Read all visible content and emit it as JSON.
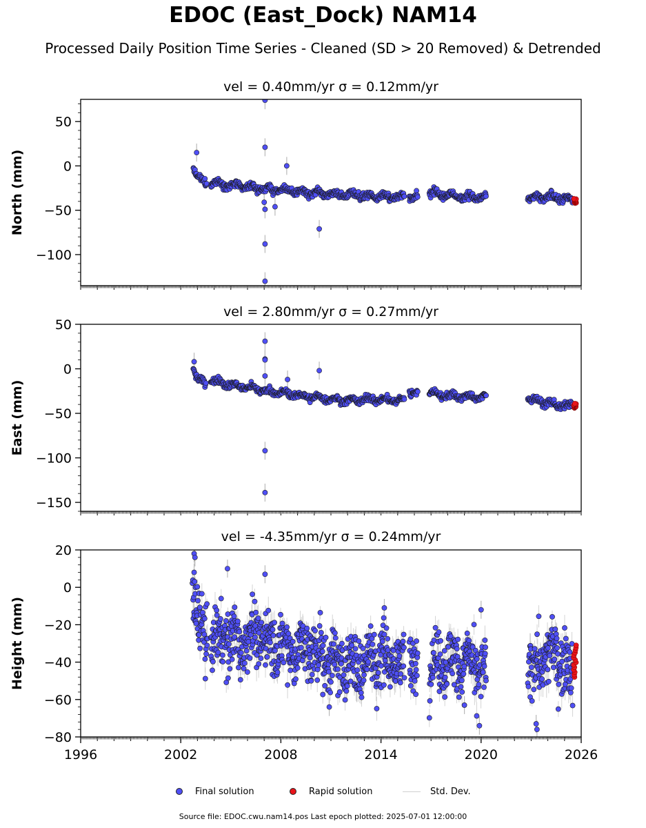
{
  "figure": {
    "title": "EDOC (East_Dock) NAM14",
    "subtitle": "Processed Daily Position Time Series - Cleaned (SD > 20 Removed) & Detrended",
    "footer": "Source file: EDOC.cwu.nam14.pos  Last epoch plotted: 2025-07-01 12:00:00"
  },
  "legend": {
    "final_label": "Final solution",
    "rapid_label": "Rapid solution",
    "sd_label": "Std. Dev.",
    "placement": "bottom-center"
  },
  "colors": {
    "final": "#4f4ff5",
    "rapid": "#e8141a",
    "sd": "#b8b8b8",
    "edge": "#1a1a1a"
  },
  "chart_data": [
    {
      "type": "scatter",
      "component": "north",
      "title": "vel = 0.40mm/yr   σ = 0.12mm/yr",
      "ylabel": "North (mm)",
      "xlim": [
        1996,
        2026
      ],
      "ylim": [
        -135,
        75
      ],
      "yticks": [
        -100,
        -50,
        0,
        50
      ],
      "ytick_labels": [
        "−100",
        "−50",
        "0",
        "50"
      ],
      "series": [
        {
          "name": "Final solution",
          "segments": [
            {
              "x": [
                2002.75,
                2002.9,
                2003.05,
                2003.2,
                2003.4,
                2003.55
              ],
              "y": [
                0,
                -9,
                -14,
                -16,
                -19,
                -20
              ]
            },
            {
              "x": [
                2003.8,
                2005.0,
                2006.0,
                2006.7,
                2007.5,
                2008.5,
                2009.5,
                2010.5,
                2011.5,
                2012.5,
                2013.5,
                2014.5,
                2015.4
              ],
              "y": [
                -18,
                -22,
                -24,
                -25,
                -27,
                -28,
                -30,
                -31,
                -32,
                -33,
                -34,
                -35,
                -35
              ]
            },
            {
              "x": [
                2015.7,
                2016.2
              ],
              "y": [
                -34,
                -34
              ]
            },
            {
              "x": [
                2016.9,
                2017.5,
                2018.5,
                2019.5,
                2020.3
              ],
              "y": [
                -31,
                -32,
                -34,
                -35,
                -36
              ]
            },
            {
              "x": [
                2022.8,
                2023.5,
                2024.2,
                2025.0,
                2025.5
              ],
              "y": [
                -37,
                -36,
                -35,
                -37,
                -39
              ]
            }
          ],
          "outliers": [
            {
              "x": 2002.95,
              "y": 15
            },
            {
              "x": 2007.05,
              "y": 74
            },
            {
              "x": 2007.05,
              "y": 21
            },
            {
              "x": 2007.05,
              "y": -49
            },
            {
              "x": 2007.05,
              "y": -88
            },
            {
              "x": 2007.05,
              "y": -130
            },
            {
              "x": 2007.0,
              "y": -41
            },
            {
              "x": 2007.65,
              "y": -46
            },
            {
              "x": 2008.35,
              "y": 0
            },
            {
              "x": 2010.3,
              "y": -71
            }
          ]
        },
        {
          "name": "Rapid solution",
          "x_range": [
            2025.55,
            2025.7
          ],
          "y_range": [
            -42,
            -37
          ]
        }
      ]
    },
    {
      "type": "scatter",
      "component": "east",
      "title": "vel = 2.80mm/yr   σ = 0.27mm/yr",
      "ylabel": "East (mm)",
      "xlim": [
        1996,
        2026
      ],
      "ylim": [
        -160,
        50
      ],
      "yticks": [
        -150,
        -100,
        -50,
        0,
        50
      ],
      "ytick_labels": [
        "−150",
        "−100",
        "−50",
        "0",
        "50"
      ],
      "series": [
        {
          "name": "Final solution",
          "segments": [
            {
              "x": [
                2002.75,
                2002.9,
                2003.05,
                2003.25,
                2003.5
              ],
              "y": [
                3,
                -8,
                -12,
                -14,
                -16
              ]
            },
            {
              "x": [
                2003.8,
                2005.0,
                2006.0,
                2006.7,
                2007.5,
                2008.5,
                2009.5,
                2010.5,
                2011.5,
                2012.5,
                2013.5,
                2014.5,
                2015.4
              ],
              "y": [
                -12,
                -18,
                -21,
                -23,
                -26,
                -28,
                -31,
                -33,
                -35,
                -35,
                -34,
                -35,
                -35
              ]
            },
            {
              "x": [
                2015.7,
                2016.2
              ],
              "y": [
                -26,
                -27
              ]
            },
            {
              "x": [
                2016.9,
                2017.5,
                2018.5,
                2019.5,
                2020.3
              ],
              "y": [
                -26,
                -29,
                -31,
                -32,
                -32
              ]
            },
            {
              "x": [
                2022.8,
                2023.5,
                2024.2,
                2025.0,
                2025.5
              ],
              "y": [
                -33,
                -36,
                -39,
                -42,
                -41
              ]
            }
          ],
          "outliers": [
            {
              "x": 2002.8,
              "y": 8
            },
            {
              "x": 2007.05,
              "y": 31
            },
            {
              "x": 2007.05,
              "y": 11
            },
            {
              "x": 2007.05,
              "y": 10
            },
            {
              "x": 2007.05,
              "y": -8
            },
            {
              "x": 2007.05,
              "y": -92
            },
            {
              "x": 2007.05,
              "y": -139
            },
            {
              "x": 2008.4,
              "y": -12
            },
            {
              "x": 2010.3,
              "y": -2
            }
          ]
        },
        {
          "name": "Rapid solution",
          "x_range": [
            2025.55,
            2025.7
          ],
          "y_range": [
            -44,
            -39
          ]
        }
      ]
    },
    {
      "type": "scatter",
      "component": "height",
      "title": "vel = -4.35mm/yr   σ = 0.24mm/yr",
      "ylabel": "Height (mm)",
      "xlim": [
        1996,
        2026
      ],
      "xticks": [
        1996,
        2002,
        2008,
        2014,
        2020,
        2026
      ],
      "ylim": [
        -80,
        20
      ],
      "yticks": [
        -80,
        -60,
        -40,
        -20,
        0,
        20
      ],
      "ytick_labels": [
        "−80",
        "−60",
        "−40",
        "−20",
        "0",
        "20"
      ],
      "series": [
        {
          "name": "Final solution",
          "segments": [
            {
              "x": [
                2002.7,
                2003.0,
                2003.3,
                2003.6
              ],
              "y": [
                -2,
                -15,
                -25,
                -30
              ]
            },
            {
              "x": [
                2003.8,
                2004.5,
                2005.5,
                2006.5,
                2007.5,
                2008.5,
                2009.5,
                2010.5,
                2011.5,
                2012.5,
                2013.5,
                2014.5,
                2015.4
              ],
              "y": [
                -28,
                -26,
                -30,
                -25,
                -30,
                -34,
                -33,
                -38,
                -41,
                -42,
                -38,
                -38,
                -40
              ]
            },
            {
              "x": [
                2015.7,
                2016.2
              ],
              "y": [
                -40,
                -41
              ]
            },
            {
              "x": [
                2016.9,
                2017.5,
                2018.5,
                2019.5,
                2020.3
              ],
              "y": [
                -43,
                -38,
                -40,
                -41,
                -48
              ]
            },
            {
              "x": [
                2022.8,
                2023.5,
                2024.2,
                2025.0,
                2025.5
              ],
              "y": [
                -46,
                -40,
                -36,
                -37,
                -50
              ]
            }
          ],
          "outliers": [
            {
              "x": 2002.8,
              "y": 18
            },
            {
              "x": 2002.85,
              "y": 16
            },
            {
              "x": 2002.8,
              "y": 8
            },
            {
              "x": 2004.8,
              "y": 10
            },
            {
              "x": 2007.05,
              "y": 7
            },
            {
              "x": 2014.2,
              "y": -11
            },
            {
              "x": 2019.9,
              "y": -74
            },
            {
              "x": 2020.0,
              "y": -12
            },
            {
              "x": 2023.35,
              "y": -76
            },
            {
              "x": 2023.3,
              "y": -73
            },
            {
              "x": 2010.9,
              "y": -64
            },
            {
              "x": 2019.0,
              "y": -63
            }
          ]
        },
        {
          "name": "Rapid solution",
          "x_range": [
            2025.55,
            2025.7
          ],
          "y_range": [
            -48,
            -31
          ]
        }
      ]
    }
  ]
}
